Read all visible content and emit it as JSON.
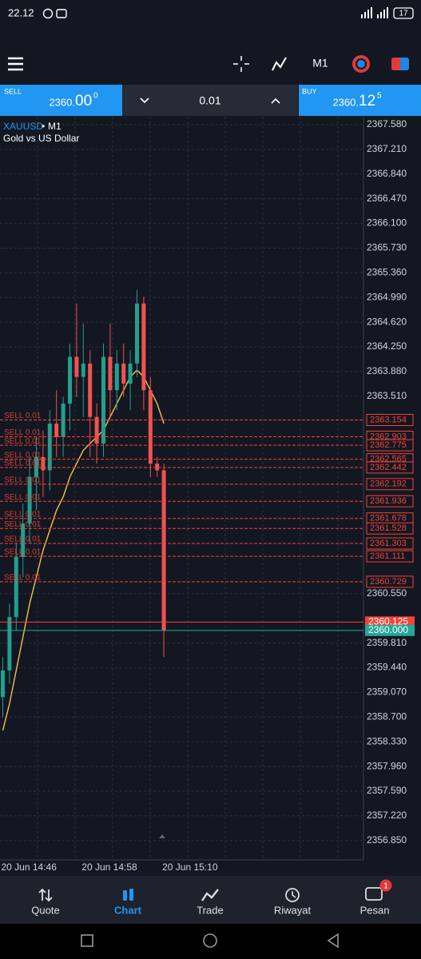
{
  "status_bar": {
    "time": "22.12",
    "battery": "17"
  },
  "toolbar": {
    "timeframe": "M1"
  },
  "trade_panel": {
    "sell": {
      "label": "SELL",
      "price": "2360.",
      "price_big": "00",
      "price_sup": "0"
    },
    "volume": "0.01",
    "buy": {
      "label": "BUY",
      "price": "2360.",
      "price_big": "12",
      "price_sup": "5"
    }
  },
  "chart_data": {
    "type": "candlestick",
    "title": "XAUUSD",
    "period": "M1",
    "subtitle": "Gold vs US Dollar",
    "categories": [
      "20 Jun 14:46",
      null,
      null,
      null,
      null,
      null,
      null,
      null,
      null,
      null,
      null,
      null,
      "20 Jun 14:58",
      null,
      null,
      null,
      null,
      null,
      null,
      null,
      null,
      null,
      null,
      null,
      "20 Jun 15:10"
    ],
    "open": [
      2359.0,
      2359.4,
      2360.2,
      2361.1,
      2361.6,
      2362.3,
      2362.6,
      2362.4,
      2363.1,
      2362.9,
      2363.4,
      2364.1,
      2363.8,
      2364.0,
      2363.2,
      2362.8,
      2364.1,
      2363.6,
      2364.0,
      2363.7,
      2364.0,
      2364.9,
      2363.6,
      2362.5,
      2362.4
    ],
    "high": [
      2359.6,
      2360.4,
      2361.3,
      2361.9,
      2362.6,
      2362.9,
      2363.0,
      2363.3,
      2363.6,
      2363.5,
      2364.3,
      2364.9,
      2364.6,
      2364.2,
      2363.4,
      2364.3,
      2364.6,
      2364.2,
      2364.3,
      2364.2,
      2365.1,
      2365.0,
      2363.8,
      2362.6,
      2362.5
    ],
    "low": [
      2358.7,
      2359.2,
      2360.0,
      2360.8,
      2361.3,
      2361.8,
      2362.0,
      2362.1,
      2362.6,
      2362.6,
      2363.0,
      2363.5,
      2363.2,
      2362.6,
      2362.5,
      2362.6,
      2363.2,
      2363.3,
      2363.5,
      2363.3,
      2363.8,
      2363.3,
      2362.3,
      2362.3,
      2359.6
    ],
    "close": [
      2359.4,
      2360.2,
      2361.1,
      2361.6,
      2362.3,
      2362.6,
      2362.4,
      2363.1,
      2362.9,
      2363.4,
      2364.1,
      2363.8,
      2364.0,
      2363.2,
      2362.8,
      2364.1,
      2363.6,
      2364.0,
      2363.7,
      2364.0,
      2364.9,
      2363.6,
      2362.5,
      2362.4,
      2360.0
    ],
    "up_color": "#22a08f",
    "down_color": "#ef5350",
    "moving_average": {
      "color": "#f2c14e",
      "values": [
        2358.5,
        2358.9,
        2359.4,
        2359.9,
        2360.4,
        2360.8,
        2361.2,
        2361.5,
        2361.8,
        2362.0,
        2362.3,
        2362.5,
        2362.7,
        2362.8,
        2362.9,
        2363.0,
        2363.2,
        2363.4,
        2363.6,
        2363.8,
        2363.9,
        2363.8,
        2363.6,
        2363.4,
        2363.1
      ]
    },
    "levels": [
      {
        "label": "SELL 0.01",
        "value": 2363.154
      },
      {
        "label": "SELL 0.01",
        "value": 2362.903
      },
      {
        "label": "SELL 0.01",
        "value": 2362.775
      },
      {
        "label": "SELL 0.01",
        "value": 2362.565
      },
      {
        "label": "SELL 0.01",
        "value": 2362.442
      },
      {
        "label": "SELL 0.01",
        "value": 2362.192
      },
      {
        "label": "SELL 0.01",
        "value": 2361.936
      },
      {
        "label": "SELL 0.01",
        "value": 2361.678
      },
      {
        "label": "SELL 0.01",
        "value": 2361.528
      },
      {
        "label": "SELL 0.01",
        "value": 2361.303
      },
      {
        "label": "SELL 0.01",
        "value": 2361.111
      },
      {
        "label": "SELL 0.01",
        "value": 2360.729
      }
    ],
    "level_color": "#f44336",
    "ask": {
      "value": 2360.125,
      "color": "#f44336"
    },
    "bid": {
      "value": 2360,
      "label": "2360.000",
      "color": "#26a69a"
    },
    "ylim": [
      2356.56,
      2367.7
    ],
    "yticks": [
      {
        "value": 2367.58,
        "label": "2367.580"
      },
      {
        "value": 2367.21,
        "label": "2367.210"
      },
      {
        "value": 2366.84,
        "label": "2366.840"
      },
      {
        "value": 2366.47,
        "label": "2366.470"
      },
      {
        "value": 2366.1,
        "label": "2366.100"
      },
      {
        "value": 2365.73,
        "label": "2365.730"
      },
      {
        "value": 2365.36,
        "label": "2365.360"
      },
      {
        "value": 2364.99,
        "label": "2364.990"
      },
      {
        "value": 2364.62,
        "label": "2364.620"
      },
      {
        "value": 2364.25,
        "label": "2364.250"
      },
      {
        "value": 2363.88,
        "label": "2363.880"
      },
      {
        "value": 2363.51,
        "label": "2363.510"
      },
      {
        "value": 2360.55,
        "label": "2360.550"
      },
      {
        "value": 2359.81,
        "label": "2359.810"
      },
      {
        "value": 2359.44,
        "label": "2359.440"
      },
      {
        "value": 2359.07,
        "label": "2359.070"
      },
      {
        "value": 2358.7,
        "label": "2358.700"
      },
      {
        "value": 2358.33,
        "label": "2358.330"
      },
      {
        "value": 2357.96,
        "label": "2357.960"
      },
      {
        "value": 2357.59,
        "label": "2357.590"
      },
      {
        "value": 2357.22,
        "label": "2357.220"
      },
      {
        "value": 2356.85,
        "label": "2356.850"
      }
    ],
    "grid": true
  },
  "bottom_nav": {
    "items": [
      {
        "label": "Quote",
        "active": false
      },
      {
        "label": "Chart",
        "active": true
      },
      {
        "label": "Trade",
        "active": false
      },
      {
        "label": "Riwayat",
        "active": false
      },
      {
        "label": "Pesan",
        "active": false
      }
    ],
    "badge": "1"
  }
}
